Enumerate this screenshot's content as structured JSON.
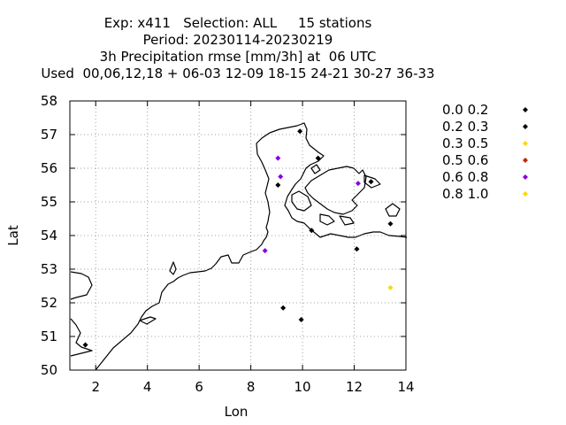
{
  "title_lines": [
    "Exp: x411   Selection: ALL     15 stations",
    "Period: 20230114-20230219",
    "3h Precipitation rmse [mm/3h] at  06 UTC",
    "Used  00,06,12,18 + 06-03 12-09 18-15 24-21 30-27 36-33"
  ],
  "chart_data": {
    "type": "scatter",
    "xlabel": "Lon",
    "ylabel": "Lat",
    "xlim": [
      1,
      14
    ],
    "ylim": [
      50,
      58
    ],
    "xticks": [
      2,
      4,
      6,
      8,
      10,
      12,
      14
    ],
    "yticks": [
      50,
      51,
      52,
      53,
      54,
      55,
      56,
      57,
      58
    ],
    "grid": true,
    "legend_position": "right",
    "series": [
      {
        "name": "0.0 0.2",
        "color": "#000000",
        "points": [
          [
            1.6,
            50.75
          ],
          [
            9.9,
            57.1
          ],
          [
            10.6,
            56.3
          ],
          [
            9.05,
            55.5
          ],
          [
            10.35,
            54.15
          ],
          [
            12.1,
            53.6
          ],
          [
            13.4,
            54.35
          ],
          [
            9.25,
            51.85
          ],
          [
            9.95,
            51.5
          ],
          [
            12.65,
            55.6
          ]
        ]
      },
      {
        "name": "0.2 0.3",
        "color": "#000000",
        "points": []
      },
      {
        "name": "0.3 0.5",
        "color": "#ffd700",
        "points": [
          [
            13.4,
            52.45
          ]
        ]
      },
      {
        "name": "0.5 0.6",
        "color": "#cc2200",
        "points": []
      },
      {
        "name": "0.6 0.8",
        "color": "#8800dd",
        "points": [
          [
            9.05,
            56.3
          ],
          [
            9.15,
            55.75
          ],
          [
            8.55,
            53.55
          ],
          [
            12.15,
            55.55
          ]
        ]
      },
      {
        "name": "0.8 1.0",
        "color": "#ffd700",
        "points": []
      }
    ]
  }
}
